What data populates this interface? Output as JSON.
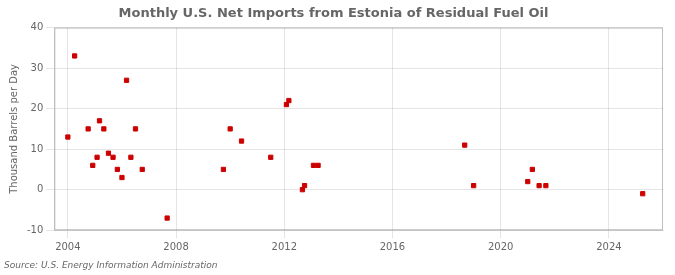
{
  "chart_data": {
    "type": "scatter",
    "title": "Monthly U.S. Net Imports from Estonia of Residual Fuel Oil",
    "ylabel": "Thousand Barrels per Day",
    "source": "Source: U.S. Energy Information Administration",
    "color": "#cc0000",
    "marker": "square",
    "x": [
      2004.0,
      2004.25,
      2004.75,
      2004.92,
      2005.08,
      2005.17,
      2005.33,
      2005.5,
      2005.67,
      2005.83,
      2006.0,
      2006.17,
      2006.33,
      2006.5,
      2006.75,
      2007.67,
      2009.75,
      2010.0,
      2010.42,
      2011.5,
      2012.08,
      2012.17,
      2012.67,
      2012.75,
      2013.08,
      2013.25,
      2018.67,
      2019.0,
      2021.0,
      2021.17,
      2021.42,
      2021.67,
      2025.25
    ],
    "values": [
      13,
      33,
      15,
      6,
      8,
      17,
      15,
      9,
      8,
      5,
      3,
      27,
      8,
      15,
      5,
      -7,
      5,
      15,
      12,
      8,
      21,
      22,
      0,
      1,
      6,
      6,
      11,
      1,
      2,
      5,
      1,
      1,
      -1
    ],
    "xlim": [
      2003.5,
      2026.0
    ],
    "xticks": [
      2004,
      2008,
      2012,
      2016,
      2020,
      2024
    ],
    "ylim": [
      -10,
      40
    ],
    "yticks": [
      -10,
      0,
      10,
      20,
      30,
      40
    ],
    "grid": true
  }
}
